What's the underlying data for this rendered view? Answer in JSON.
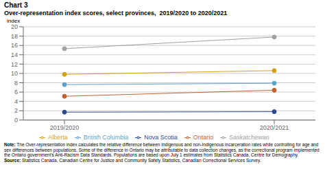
{
  "chart_data": {
    "type": "line",
    "title": "Chart 3",
    "subtitle": "Over-representation index scores, select provinces,  2019/2020 to 2020/2021",
    "y_label": "index",
    "categories": [
      "2019/2020",
      "2020/2021"
    ],
    "series": [
      {
        "name": "Nova Scotia",
        "values": [
          1.7,
          1.8
        ],
        "color": "#2e4a8e",
        "marker": "circle",
        "line_style": "solid"
      },
      {
        "name": "Ontario",
        "values": [
          5.1,
          6.4
        ],
        "color": "#c0622f",
        "marker": "circle",
        "line_style": "solid"
      },
      {
        "name": "Saskatchewan",
        "values": [
          15.3,
          17.8
        ],
        "color": "#a0a0a0",
        "marker": "circle",
        "line_style": "solid"
      },
      {
        "name": "Alberta",
        "values": [
          9.8,
          10.6
        ],
        "color": "#d4a017",
        "marker": "circle",
        "line_style": "solid"
      },
      {
        "name": "British Columbia",
        "values": [
          7.6,
          7.9
        ],
        "color": "#5ba3c9",
        "marker": "circle",
        "line_style": "solid"
      }
    ],
    "ylim": [
      0,
      20
    ],
    "yticks": [
      0,
      2,
      4,
      6,
      8,
      10,
      12,
      14,
      16,
      18,
      20
    ],
    "grid": true,
    "annotations": [
      "Note: The Over-representation index calculates the relative difference between Indigenous and non-Indigenous incarceration rates while controlling for age and sex differences between populations. Some of the difference in Ontario may be attributable to data collection changes, as the correctional program implemented the Ontario government’s Anti-Racism Data Standards. Populations are based upon July 1 estimates from Statistics Canada, Centre for Demography.",
      "Source: Statistics Canada, Canadian Centre for Justice and Community Safety Statistics, Canadian Correctional Services Survey."
    ]
  }
}
